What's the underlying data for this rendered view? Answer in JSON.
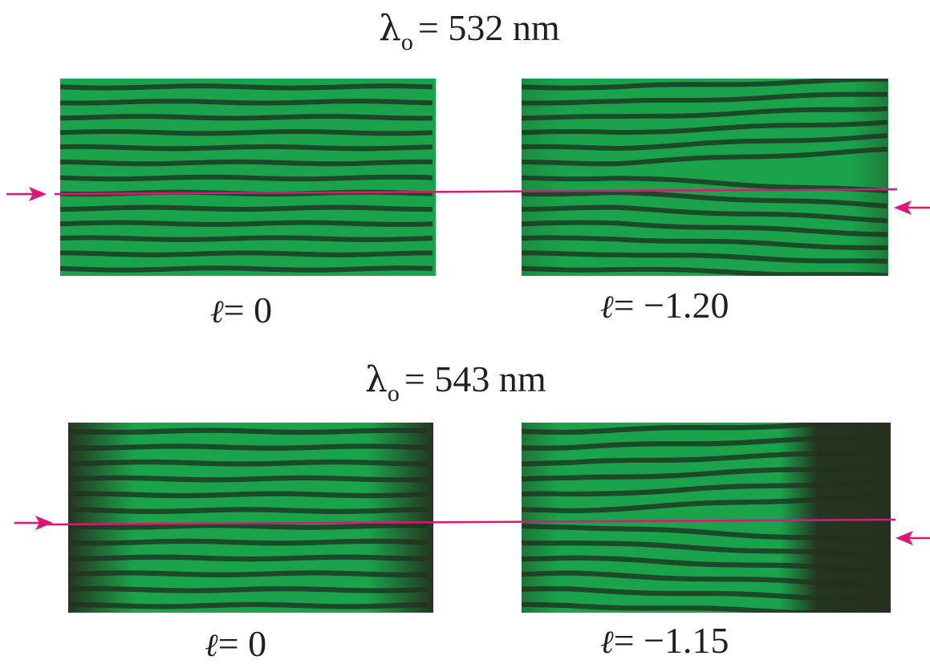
{
  "rows": [
    {
      "wavelength": {
        "symbol": "λ",
        "subscript": "o",
        "text": "= 532 nm"
      },
      "panels": [
        {
          "label_symbol": "ℓ",
          "label_text": "= 0"
        },
        {
          "label_symbol": "ℓ",
          "label_text": "= −1.20"
        }
      ]
    },
    {
      "wavelength": {
        "symbol": "λ",
        "subscript": "o",
        "text": "= 543 nm"
      },
      "panels": [
        {
          "label_symbol": "ℓ",
          "label_text": "= 0"
        },
        {
          "label_symbol": "ℓ",
          "label_text": "= −1.15"
        }
      ]
    }
  ],
  "colors": {
    "fringe_bright": "#1aa34a",
    "fringe_dark": "#1c3a24",
    "background_dark": "#25301f",
    "marker_line": "#e0157a",
    "text": "#231f20"
  }
}
